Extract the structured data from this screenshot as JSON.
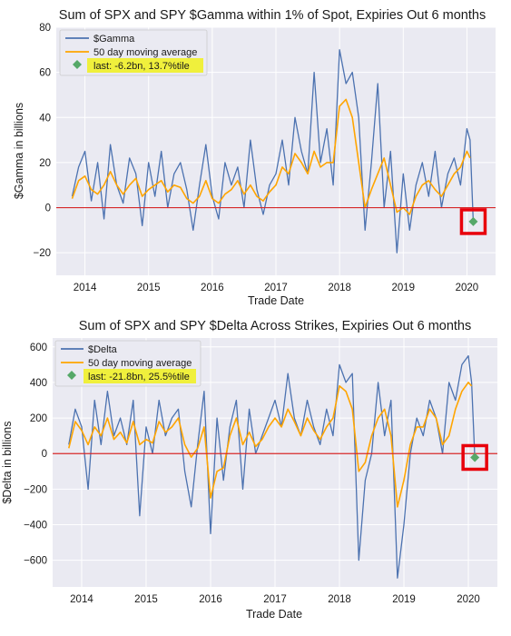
{
  "chart_data": [
    {
      "id": "gamma",
      "type": "line",
      "title": "Sum of SPX and SPY $Gamma within 1% of Spot, Expiries Out 6 months",
      "xlabel": "Trade Date",
      "ylabel": "$Gamma in billions",
      "xlim": [
        2013.55,
        2020.45
      ],
      "ylim": [
        -30,
        80
      ],
      "yticks": [
        80,
        60,
        40,
        20,
        0,
        -20
      ],
      "ytick_labels": [
        "80",
        "60",
        "40",
        "20",
        "0",
        "−20"
      ],
      "xticks": [
        2014,
        2015,
        2016,
        2017,
        2018,
        2019,
        2020
      ],
      "xtick_labels": [
        "2014",
        "2015",
        "2016",
        "2017",
        "2018",
        "2019",
        "2020"
      ],
      "grid": true,
      "legend_position": "top-left",
      "legend": {
        "series1": "$Gamma",
        "series2": "50 day moving average",
        "last": "last: -6.2bn, 13.7%tile"
      },
      "reference_line": 0,
      "last_point": {
        "x": 2020.1,
        "y": -6.2
      },
      "colors": {
        "series1": "#4c72b0",
        "series2": "#ffa500",
        "last": "#55a868",
        "reference": "#d62728",
        "highlight_box": "#e8000b",
        "legend_highlight": "#f0f03c",
        "plot_bg": "#eaeaf2"
      },
      "series": [
        {
          "name": "$Gamma",
          "x": [
            2013.8,
            2013.9,
            2014.0,
            2014.1,
            2014.2,
            2014.3,
            2014.4,
            2014.5,
            2014.6,
            2014.7,
            2014.8,
            2014.9,
            2015.0,
            2015.1,
            2015.2,
            2015.3,
            2015.4,
            2015.5,
            2015.6,
            2015.7,
            2015.8,
            2015.9,
            2016.0,
            2016.1,
            2016.2,
            2016.3,
            2016.4,
            2016.5,
            2016.6,
            2016.7,
            2016.8,
            2016.9,
            2017.0,
            2017.1,
            2017.2,
            2017.3,
            2017.4,
            2017.5,
            2017.6,
            2017.7,
            2017.8,
            2017.9,
            2018.0,
            2018.1,
            2018.2,
            2018.3,
            2018.4,
            2018.5,
            2018.6,
            2018.7,
            2018.8,
            2018.9,
            2019.0,
            2019.1,
            2019.2,
            2019.3,
            2019.4,
            2019.5,
            2019.6,
            2019.7,
            2019.8,
            2019.9,
            2020.0,
            2020.05,
            2020.1
          ],
          "y": [
            5,
            18,
            25,
            3,
            20,
            -5,
            28,
            10,
            2,
            22,
            15,
            -8,
            20,
            5,
            25,
            0,
            15,
            20,
            8,
            -10,
            10,
            28,
            5,
            -5,
            20,
            10,
            18,
            0,
            30,
            8,
            -3,
            10,
            15,
            30,
            10,
            40,
            25,
            15,
            60,
            20,
            35,
            10,
            70,
            55,
            60,
            40,
            -10,
            20,
            55,
            0,
            25,
            -20,
            15,
            -10,
            10,
            20,
            5,
            25,
            0,
            15,
            22,
            10,
            35,
            30,
            -6.2
          ]
        },
        {
          "name": "50 day moving average",
          "x": [
            2013.8,
            2013.9,
            2014.0,
            2014.1,
            2014.2,
            2014.3,
            2014.4,
            2014.5,
            2014.6,
            2014.7,
            2014.8,
            2014.9,
            2015.0,
            2015.1,
            2015.2,
            2015.3,
            2015.4,
            2015.5,
            2015.6,
            2015.7,
            2015.8,
            2015.9,
            2016.0,
            2016.1,
            2016.2,
            2016.3,
            2016.4,
            2016.5,
            2016.6,
            2016.7,
            2016.8,
            2016.9,
            2017.0,
            2017.1,
            2017.2,
            2017.3,
            2017.4,
            2017.5,
            2017.6,
            2017.7,
            2017.8,
            2017.9,
            2018.0,
            2018.1,
            2018.2,
            2018.3,
            2018.4,
            2018.5,
            2018.6,
            2018.7,
            2018.8,
            2018.9,
            2019.0,
            2019.1,
            2019.2,
            2019.3,
            2019.4,
            2019.5,
            2019.6,
            2019.7,
            2019.8,
            2019.9,
            2020.0,
            2020.05
          ],
          "y": [
            4,
            12,
            14,
            8,
            6,
            10,
            16,
            10,
            6,
            10,
            13,
            5,
            8,
            10,
            12,
            7,
            10,
            9,
            4,
            2,
            5,
            12,
            4,
            2,
            6,
            8,
            12,
            6,
            10,
            5,
            3,
            7,
            10,
            18,
            15,
            24,
            20,
            15,
            25,
            18,
            20,
            20,
            45,
            48,
            40,
            20,
            0,
            8,
            15,
            22,
            10,
            -2,
            0,
            -3,
            5,
            10,
            12,
            8,
            5,
            10,
            15,
            18,
            25,
            22
          ]
        }
      ]
    },
    {
      "id": "delta",
      "type": "line",
      "title": "Sum of SPX and SPY $Delta Across Strikes, Expiries Out 6 months",
      "xlabel": "Trade Date",
      "ylabel": "$Delta in billions",
      "xlim": [
        2013.55,
        2020.45
      ],
      "ylim": [
        -750,
        650
      ],
      "yticks": [
        600,
        400,
        200,
        0,
        -200,
        -400,
        -600
      ],
      "ytick_labels": [
        "600",
        "400",
        "200",
        "0",
        "−200",
        "−400",
        "−600"
      ],
      "xticks": [
        2014,
        2015,
        2016,
        2017,
        2018,
        2019,
        2020
      ],
      "xtick_labels": [
        "2014",
        "2015",
        "2016",
        "2017",
        "2018",
        "2019",
        "2020"
      ],
      "grid": true,
      "legend_position": "top-left",
      "legend": {
        "series1": "$Delta",
        "series2": "50 day moving average",
        "last": "last: -21.8bn, 25.5%tile"
      },
      "reference_line": 0,
      "last_point": {
        "x": 2020.1,
        "y": -21.8
      },
      "colors": {
        "series1": "#4c72b0",
        "series2": "#ffa500",
        "last": "#55a868",
        "reference": "#d62728",
        "highlight_box": "#e8000b",
        "legend_highlight": "#f0f03c",
        "plot_bg": "#eaeaf2"
      },
      "series": [
        {
          "name": "$Delta",
          "x": [
            2013.8,
            2013.9,
            2014.0,
            2014.1,
            2014.2,
            2014.3,
            2014.4,
            2014.5,
            2014.6,
            2014.7,
            2014.8,
            2014.9,
            2015.0,
            2015.1,
            2015.2,
            2015.3,
            2015.4,
            2015.5,
            2015.6,
            2015.7,
            2015.8,
            2015.9,
            2016.0,
            2016.1,
            2016.2,
            2016.3,
            2016.4,
            2016.5,
            2016.6,
            2016.7,
            2016.8,
            2016.9,
            2017.0,
            2017.1,
            2017.2,
            2017.3,
            2017.4,
            2017.5,
            2017.6,
            2017.7,
            2017.8,
            2017.9,
            2018.0,
            2018.1,
            2018.2,
            2018.3,
            2018.4,
            2018.5,
            2018.6,
            2018.7,
            2018.8,
            2018.9,
            2019.0,
            2019.1,
            2019.2,
            2019.3,
            2019.4,
            2019.5,
            2019.6,
            2019.7,
            2019.8,
            2019.9,
            2020.0,
            2020.05,
            2020.1
          ],
          "y": [
            50,
            250,
            150,
            -200,
            300,
            50,
            350,
            100,
            200,
            50,
            300,
            -350,
            150,
            0,
            300,
            100,
            200,
            250,
            -100,
            -300,
            50,
            350,
            -450,
            200,
            -150,
            150,
            300,
            -200,
            250,
            0,
            100,
            200,
            300,
            150,
            450,
            200,
            100,
            300,
            150,
            50,
            250,
            100,
            500,
            400,
            450,
            -600,
            -150,
            0,
            400,
            100,
            300,
            -700,
            -400,
            0,
            200,
            100,
            300,
            200,
            0,
            400,
            300,
            500,
            550,
            400,
            -21.8
          ]
        },
        {
          "name": "50 day moving average",
          "x": [
            2013.8,
            2013.9,
            2014.0,
            2014.1,
            2014.2,
            2014.3,
            2014.4,
            2014.5,
            2014.6,
            2014.7,
            2014.8,
            2014.9,
            2015.0,
            2015.1,
            2015.2,
            2015.3,
            2015.4,
            2015.5,
            2015.6,
            2015.7,
            2015.8,
            2015.9,
            2016.0,
            2016.1,
            2016.2,
            2016.3,
            2016.4,
            2016.5,
            2016.6,
            2016.7,
            2016.8,
            2016.9,
            2017.0,
            2017.1,
            2017.2,
            2017.3,
            2017.4,
            2017.5,
            2017.6,
            2017.7,
            2017.8,
            2017.9,
            2018.0,
            2018.1,
            2018.2,
            2018.3,
            2018.4,
            2018.5,
            2018.6,
            2018.7,
            2018.8,
            2018.9,
            2019.0,
            2019.1,
            2019.2,
            2019.3,
            2019.4,
            2019.5,
            2019.6,
            2019.7,
            2019.8,
            2019.9,
            2020.0,
            2020.05
          ],
          "y": [
            30,
            180,
            130,
            50,
            150,
            100,
            200,
            80,
            120,
            60,
            180,
            50,
            80,
            60,
            180,
            120,
            150,
            200,
            50,
            -20,
            30,
            150,
            -250,
            -100,
            -80,
            100,
            200,
            50,
            120,
            40,
            80,
            150,
            200,
            150,
            250,
            180,
            100,
            200,
            130,
            80,
            150,
            200,
            380,
            350,
            250,
            -100,
            -50,
            100,
            200,
            250,
            100,
            -300,
            -150,
            50,
            150,
            150,
            250,
            200,
            50,
            100,
            250,
            350,
            400,
            380
          ]
        }
      ]
    }
  ]
}
